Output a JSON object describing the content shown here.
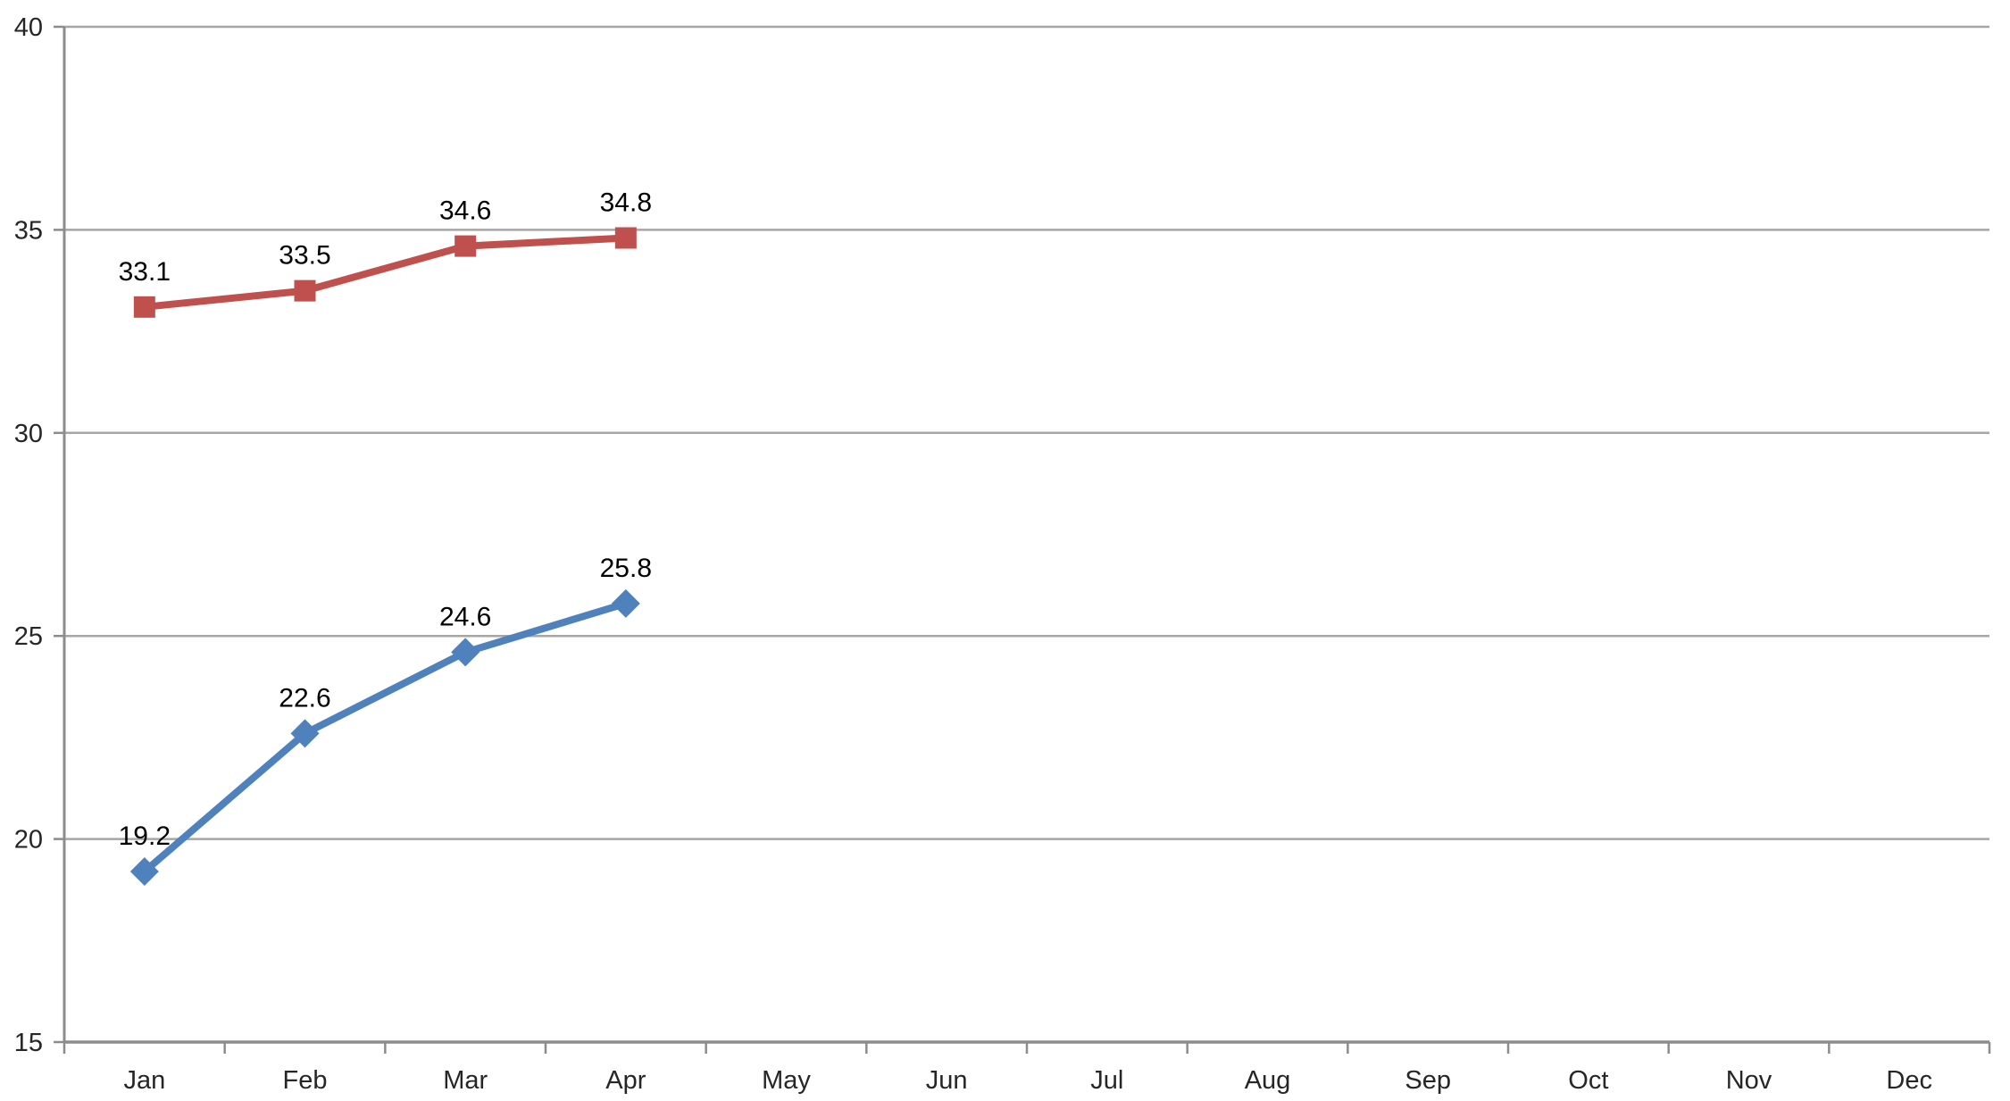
{
  "chart_data": {
    "type": "line",
    "title": "",
    "xlabel": "",
    "ylabel": "",
    "categories": [
      "Jan",
      "Feb",
      "Mar",
      "Apr",
      "May",
      "Jun",
      "Jul",
      "Aug",
      "Sep",
      "Oct",
      "Nov",
      "Dec"
    ],
    "series": [
      {
        "id": "blue-diamond-series",
        "marker": "diamond",
        "color": "#4F81BD",
        "values": [
          19.2,
          22.6,
          24.6,
          25.8,
          null,
          null,
          null,
          null,
          null,
          null,
          null,
          null
        ],
        "data_labels": [
          "19.2",
          "22.6",
          "24.6",
          "25.8"
        ]
      },
      {
        "id": "red-square-series",
        "marker": "square",
        "color": "#C0504D",
        "values": [
          33.1,
          33.5,
          34.6,
          34.8,
          null,
          null,
          null,
          null,
          null,
          null,
          null,
          null
        ],
        "data_labels": [
          "33.1",
          "33.5",
          "34.6",
          "34.8"
        ]
      }
    ],
    "ylim": [
      15,
      40
    ],
    "yticks": [
      "15",
      "20",
      "25",
      "30",
      "35",
      "40"
    ],
    "grid": "horizontal",
    "legend": "none",
    "grid_color": "#A6A6A6",
    "axis_color": "#8C8C8C",
    "tick_label_color": "#262626",
    "data_label_color": "#000000",
    "background_color": "#FFFFFF"
  }
}
